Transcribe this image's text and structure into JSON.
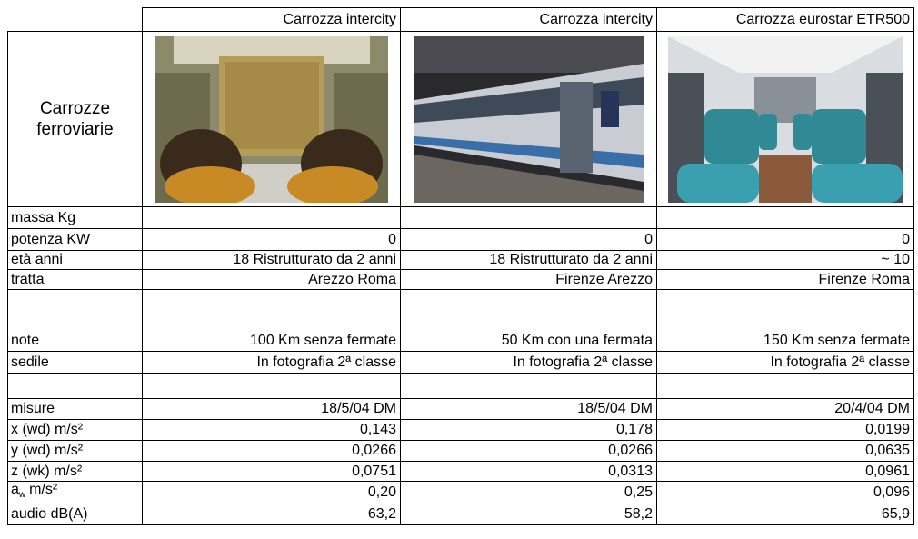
{
  "table": {
    "columns": [
      "Carrozza intercity",
      "Carrozza intercity",
      "Carrozza eurostar ETR500"
    ],
    "image_row_label": "Carrozze ferroviarie",
    "rows": [
      {
        "label": "massa Kg",
        "values": [
          null,
          null,
          null
        ]
      },
      {
        "label": "potenza KW",
        "values": [
          "0",
          "0",
          "0"
        ]
      },
      {
        "label": "età anni",
        "values": [
          "18 Ristrutturato da 2 anni",
          "18 Ristrutturato da 2 anni",
          "~ 10"
        ]
      },
      {
        "label": "tratta",
        "values": [
          "Arezzo Roma",
          "Firenze Arezzo",
          "Firenze Roma"
        ]
      },
      {
        "label": "note",
        "values": [
          "100 Km senza fermate",
          "50 Km con una fermata",
          "150 Km senza fermate"
        ]
      },
      {
        "label": "sedile",
        "values": [
          "In fotografia 2ª classe",
          "In fotografia 2ª classe",
          "In fotografia 2ª classe"
        ]
      },
      {
        "label": null,
        "values": [
          null,
          null,
          null
        ]
      },
      {
        "label": "misure",
        "values": [
          "18/5/04 DM",
          "18/5/04 DM",
          "20/4/04 DM"
        ]
      },
      {
        "label": "x (wd) m/s²",
        "values": [
          "0,143",
          "0,178",
          "0,0199"
        ]
      },
      {
        "label": "y (wd) m/s²",
        "values": [
          "0,0266",
          "0,0266",
          "0,0635"
        ]
      },
      {
        "label": "z (wk) m/s²",
        "values": [
          "0,0751",
          "0,0313",
          "0,0961"
        ]
      },
      {
        "label": {
          "base": "a",
          "sub": "w",
          "unit": "m/s²"
        },
        "values": [
          "0,20",
          "0,25",
          "0,096"
        ]
      },
      {
        "label": "audio dB(A)",
        "values": [
          "63,2",
          "58,2",
          "65,9"
        ]
      }
    ]
  }
}
